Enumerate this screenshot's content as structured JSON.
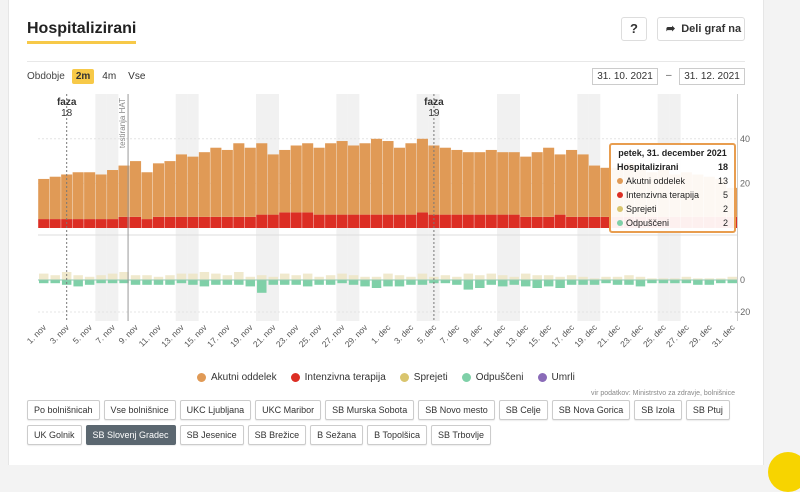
{
  "header": {
    "title": "Hospitalizirani",
    "help_label": "?",
    "share_label": "Deli graf na"
  },
  "period": {
    "label": "Obdobje",
    "options": [
      "2m",
      "4m",
      "Vse"
    ],
    "active": "2m"
  },
  "date_range": {
    "from": "31. 10. 2021",
    "separator": "–",
    "to": "31. 12. 2021"
  },
  "tooltip": {
    "title": "petek, 31. december 2021",
    "rows": [
      {
        "label": "Hospitalizirani",
        "value": "18"
      },
      {
        "label": "Akutni oddelek",
        "value": "13"
      },
      {
        "label": "Intenzivna terapija",
        "value": "5"
      },
      {
        "label": "Sprejeti",
        "value": "2"
      },
      {
        "label": "Odpuščeni",
        "value": "2"
      }
    ]
  },
  "legend": [
    {
      "label": "Akutni oddelek",
      "color": "#e09a56"
    },
    {
      "label": "Intenzivna terapija",
      "color": "#dc2e24"
    },
    {
      "label": "Sprejeti",
      "color": "#d9c56e"
    },
    {
      "label": "Odpuščeni",
      "color": "#7fd0a8"
    },
    {
      "label": "Umrli",
      "color": "#8a6bb8"
    }
  ],
  "source": "vir podatkov: Ministrstvo za zdravje, bolnišnice",
  "hospitals": [
    "Po bolnišnicah",
    "Vse bolnišnice",
    "UKC Ljubljana",
    "UKC Maribor",
    "SB Murska Sobota",
    "SB Novo mesto",
    "SB Celje",
    "SB Nova Gorica",
    "SB Izola",
    "SB Ptuj",
    "UK Golnik",
    "SB Slovenj Gradec",
    "SB Jesenice",
    "SB Brežice",
    "B Sežana",
    "B Topolšica",
    "SB Trbovlje"
  ],
  "active_hospital": "SB Slovenj Gradec",
  "chart_data": {
    "type": "bar",
    "x": [
      "1. nov",
      "2. nov",
      "3. nov",
      "4. nov",
      "5. nov",
      "6. nov",
      "7. nov",
      "8. nov",
      "9. nov",
      "10. nov",
      "11. nov",
      "12. nov",
      "13. nov",
      "14. nov",
      "15. nov",
      "16. nov",
      "17. nov",
      "18. nov",
      "19. nov",
      "20. nov",
      "21. nov",
      "22. nov",
      "23. nov",
      "24. nov",
      "25. nov",
      "26. nov",
      "27. nov",
      "28. nov",
      "29. nov",
      "30. nov",
      "1. dec",
      "2. dec",
      "3. dec",
      "4. dec",
      "5. dec",
      "6. dec",
      "7. dec",
      "8. dec",
      "9. dec",
      "10. dec",
      "11. dec",
      "12. dec",
      "13. dec",
      "14. dec",
      "15. dec",
      "16. dec",
      "17. dec",
      "18. dec",
      "19. dec",
      "20. dec",
      "21. dec",
      "22. dec",
      "23. dec",
      "24. dec",
      "25. dec",
      "26. dec",
      "27. dec",
      "28. dec",
      "29. dec",
      "30. dec",
      "31. dec"
    ],
    "xticks": [
      "1. nov",
      "3. nov",
      "5. nov",
      "7. nov",
      "9. nov",
      "11. nov",
      "13. nov",
      "15. nov",
      "17. nov",
      "19. nov",
      "21. nov",
      "23. nov",
      "25. nov",
      "27. nov",
      "29. nov",
      "1. dec",
      "3. dec",
      "5. dec",
      "7. dec",
      "9. dec",
      "11. dec",
      "13. dec",
      "15. dec",
      "17. dec",
      "19. dec",
      "21. dec",
      "23. dec",
      "25. dec",
      "27. dec",
      "29. dec",
      "31. dec"
    ],
    "series": [
      {
        "name": "Akutni oddelek",
        "values": [
          18,
          19,
          20,
          21,
          21,
          20,
          22,
          23,
          25,
          21,
          24,
          25,
          28,
          27,
          29,
          31,
          30,
          33,
          31,
          32,
          27,
          28,
          30,
          31,
          30,
          32,
          33,
          31,
          32,
          34,
          33,
          30,
          32,
          33,
          31,
          30,
          29,
          28,
          28,
          29,
          28,
          28,
          27,
          29,
          31,
          27,
          30,
          28,
          23,
          22,
          22,
          24,
          21,
          20,
          21,
          19,
          20,
          19,
          18,
          17,
          13
        ]
      },
      {
        "name": "Intenzivna terapija",
        "values": [
          4,
          4,
          4,
          4,
          4,
          4,
          4,
          5,
          5,
          4,
          5,
          5,
          5,
          5,
          5,
          5,
          5,
          5,
          5,
          6,
          6,
          7,
          7,
          7,
          6,
          6,
          6,
          6,
          6,
          6,
          6,
          6,
          6,
          7,
          6,
          6,
          6,
          6,
          6,
          6,
          6,
          6,
          5,
          5,
          5,
          6,
          5,
          5,
          5,
          5,
          5,
          5,
          5,
          5,
          5,
          5,
          5,
          5,
          5,
          5,
          5
        ]
      },
      {
        "name": "Sprejeti",
        "values": [
          4,
          3,
          5,
          3,
          2,
          3,
          4,
          5,
          3,
          3,
          2,
          3,
          4,
          4,
          5,
          4,
          3,
          5,
          2,
          3,
          2,
          4,
          3,
          4,
          2,
          3,
          4,
          3,
          2,
          2,
          4,
          3,
          2,
          4,
          2,
          3,
          2,
          4,
          3,
          4,
          3,
          2,
          4,
          3,
          3,
          2,
          3,
          2,
          1,
          2,
          2,
          3,
          2,
          1,
          1,
          1,
          2,
          1,
          1,
          1,
          2
        ]
      },
      {
        "name": "Odpuščeni",
        "values": [
          2,
          2,
          3,
          4,
          3,
          2,
          2,
          2,
          3,
          3,
          3,
          3,
          2,
          3,
          4,
          3,
          3,
          3,
          4,
          8,
          3,
          3,
          3,
          4,
          3,
          3,
          2,
          3,
          4,
          5,
          4,
          4,
          3,
          3,
          2,
          2,
          3,
          6,
          5,
          3,
          4,
          3,
          4,
          5,
          4,
          5,
          3,
          3,
          3,
          2,
          3,
          3,
          4,
          2,
          2,
          2,
          2,
          3,
          3,
          2,
          2
        ]
      },
      {
        "name": "Umrli",
        "values": [
          0,
          0,
          0,
          0,
          0,
          0,
          0,
          0,
          0,
          0,
          0,
          0,
          0,
          0,
          0,
          0,
          0,
          0,
          0,
          0,
          0,
          0,
          0,
          0,
          0,
          0,
          0,
          0,
          0,
          0,
          0,
          0,
          0,
          0,
          0,
          0,
          0,
          0,
          0,
          0,
          0,
          0,
          0,
          0,
          0,
          0,
          0,
          0,
          0,
          0,
          0,
          0,
          0,
          0,
          0,
          0,
          0,
          0,
          0,
          0,
          0
        ]
      }
    ],
    "annotations": [
      {
        "x": "3. nov",
        "label": "faza",
        "sub": "18"
      },
      {
        "x": "8. nov",
        "label": "testiranja HAT"
      },
      {
        "x": "5. dec",
        "label": "faza",
        "sub": "19"
      }
    ],
    "yticks_top": [
      20,
      40
    ],
    "yticks_bottom": [
      0,
      -20
    ],
    "ylim_top": [
      0,
      45
    ],
    "ylim_bottom": [
      -20,
      10
    ]
  }
}
